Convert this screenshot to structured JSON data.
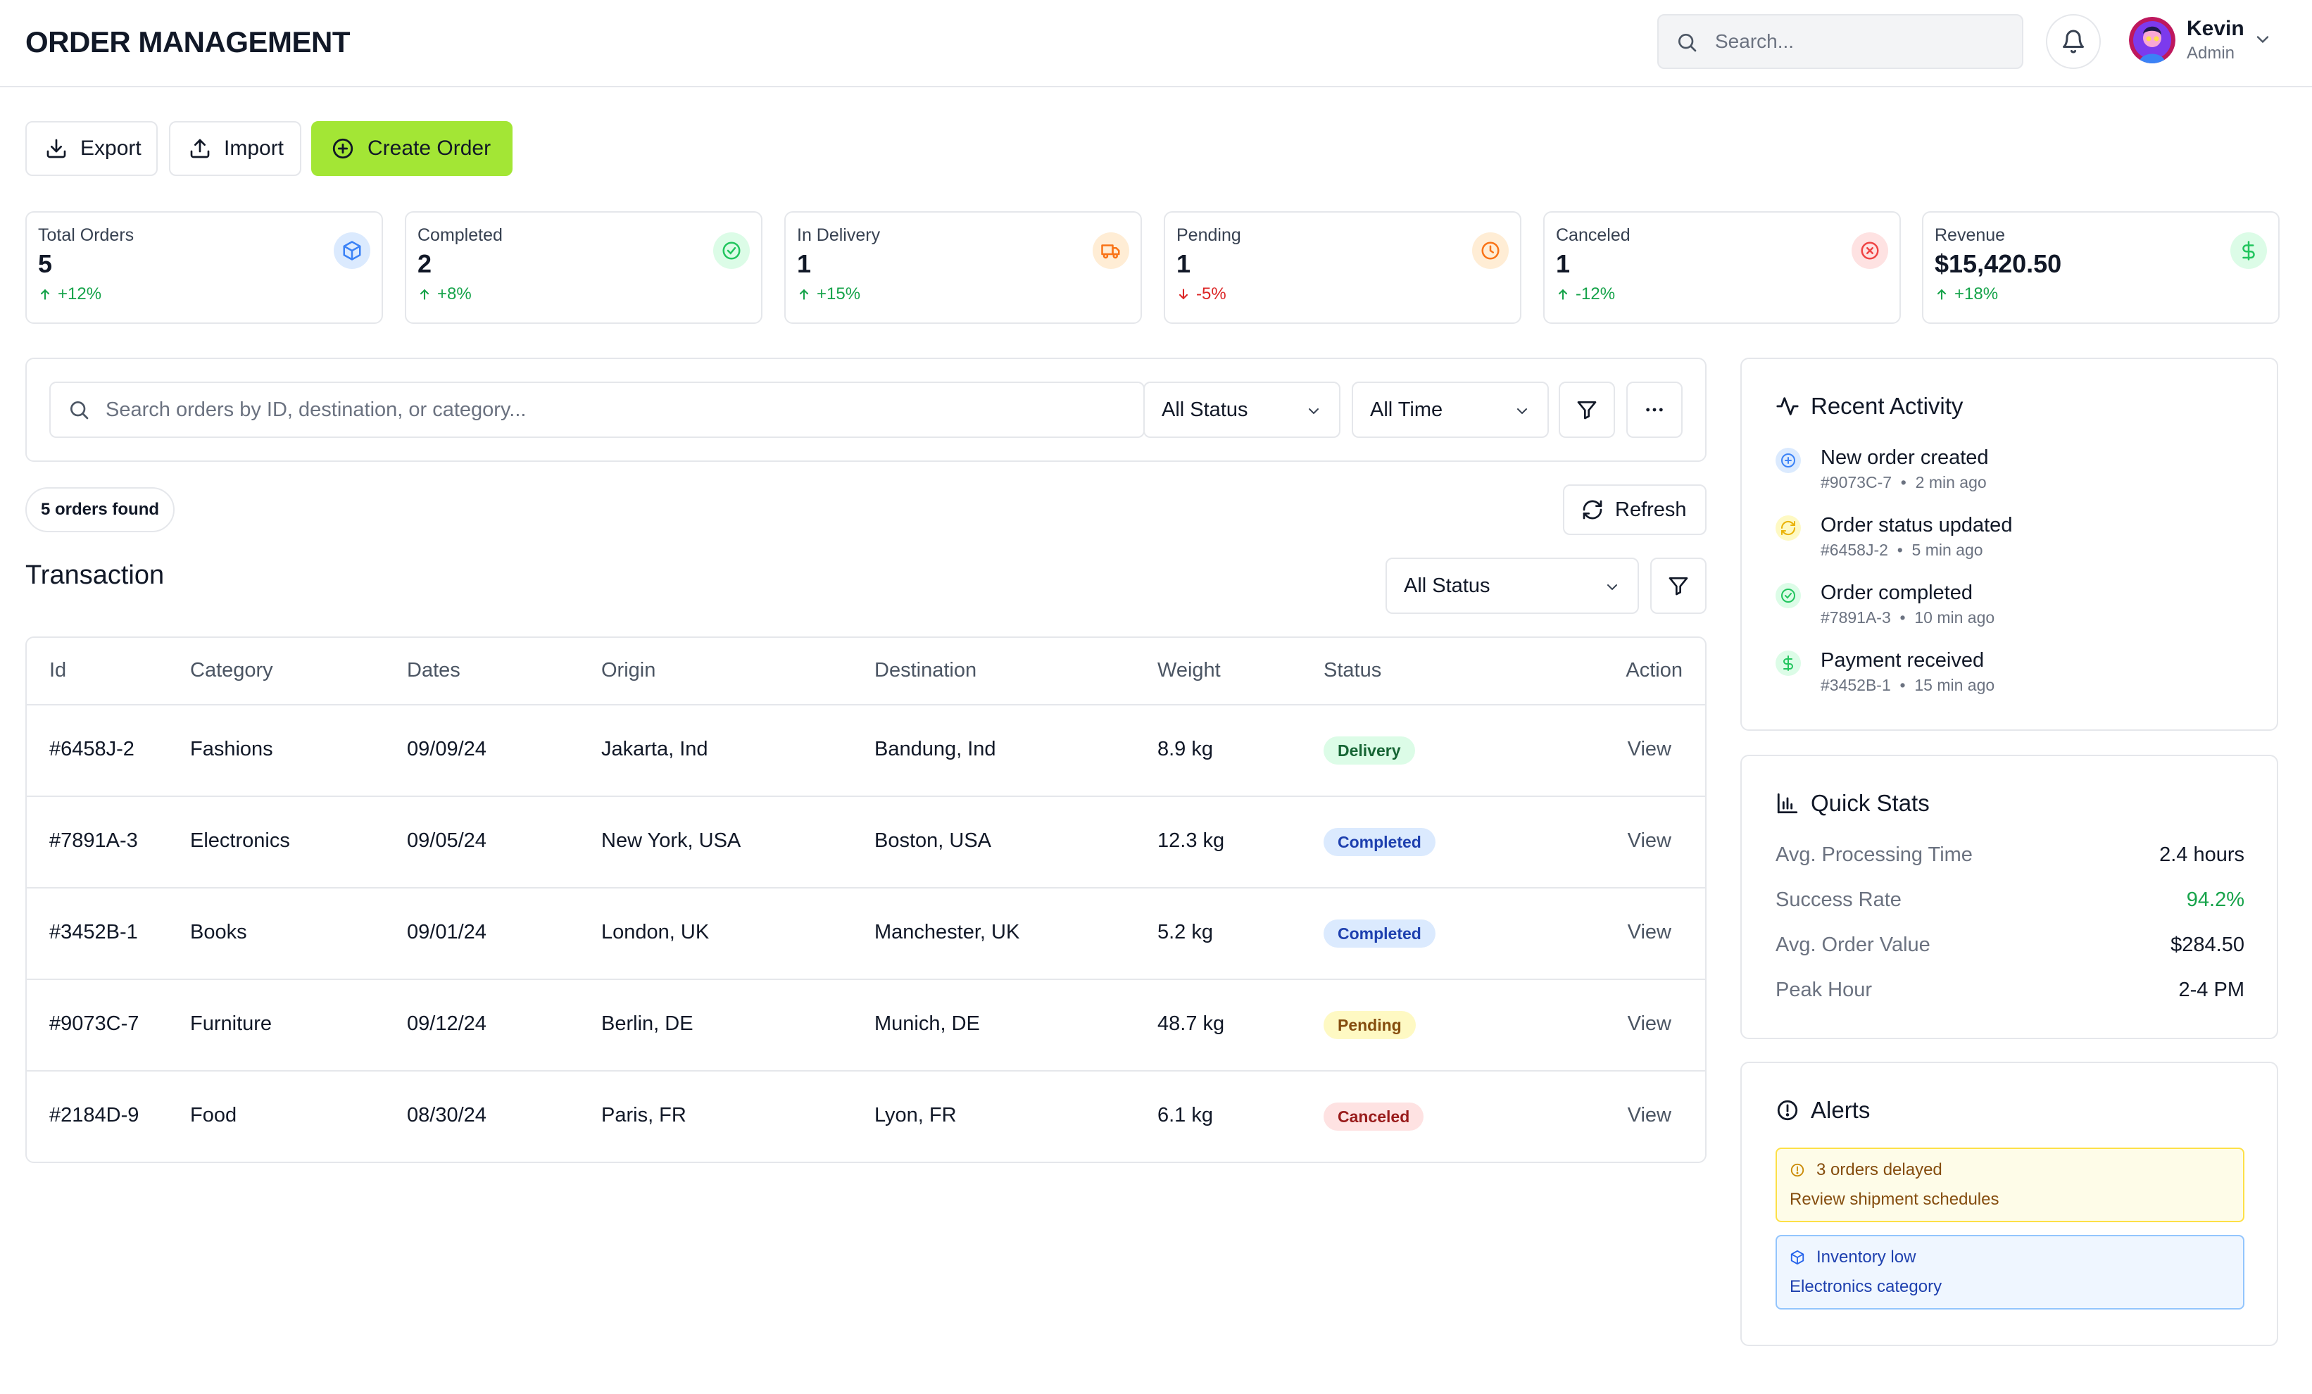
{
  "header": {
    "title": "ORDER MANAGEMENT",
    "search_placeholder": "Search...",
    "user": {
      "name": "Kevin",
      "role": "Admin"
    }
  },
  "toolbar": {
    "export_label": "Export",
    "import_label": "Import",
    "create_label": "Create Order"
  },
  "kpis": [
    {
      "label": "Total Orders",
      "value": "5",
      "change": "+12%",
      "direction": "up",
      "icon": "box-icon",
      "color": "#3b82f6"
    },
    {
      "label": "Completed",
      "value": "2",
      "change": "+8%",
      "direction": "up",
      "icon": "check-circle-icon",
      "color": "#22c55e"
    },
    {
      "label": "In Delivery",
      "value": "1",
      "change": "+15%",
      "direction": "up",
      "icon": "truck-icon",
      "color": "#f97316"
    },
    {
      "label": "Pending",
      "value": "1",
      "change": "-5%",
      "direction": "down",
      "icon": "clock-icon",
      "color": "#f97316"
    },
    {
      "label": "Canceled",
      "value": "1",
      "change": "-12%",
      "direction": "up",
      "icon": "x-circle-icon",
      "color": "#ef4444"
    },
    {
      "label": "Revenue",
      "value": "$15,420.50",
      "change": "+18%",
      "direction": "up",
      "icon": "dollar-icon",
      "color": "#22c55e"
    }
  ],
  "filters": {
    "search_placeholder": "Search orders by ID, destination, or category...",
    "status_value": "All Status",
    "time_value": "All Time"
  },
  "results": {
    "found_label": "5 orders found",
    "refresh_label": "Refresh"
  },
  "transaction": {
    "title": "Transaction",
    "status_value": "All Status",
    "columns": [
      "Id",
      "Category",
      "Dates",
      "Origin",
      "Destination",
      "Weight",
      "Status",
      "Action"
    ],
    "rows": [
      {
        "id": "#6458J-2",
        "category": "Fashions",
        "date": "09/09/24",
        "origin": "Jakarta, Ind",
        "destination": "Bandung, Ind",
        "weight": "8.9 kg",
        "status": "Delivery",
        "action": "View"
      },
      {
        "id": "#7891A-3",
        "category": "Electronics",
        "date": "09/05/24",
        "origin": "New York, USA",
        "destination": "Boston, USA",
        "weight": "12.3 kg",
        "status": "Completed",
        "action": "View"
      },
      {
        "id": "#3452B-1",
        "category": "Books",
        "date": "09/01/24",
        "origin": "London, UK",
        "destination": "Manchester, UK",
        "weight": "5.2 kg",
        "status": "Completed",
        "action": "View"
      },
      {
        "id": "#9073C-7",
        "category": "Furniture",
        "date": "09/12/24",
        "origin": "Berlin, DE",
        "destination": "Munich, DE",
        "weight": "48.7 kg",
        "status": "Pending",
        "action": "View"
      },
      {
        "id": "#2184D-9",
        "category": "Food",
        "date": "08/30/24",
        "origin": "Paris, FR",
        "destination": "Lyon, FR",
        "weight": "6.1 kg",
        "status": "Canceled",
        "action": "View"
      }
    ]
  },
  "recent_activity": {
    "title": "Recent Activity",
    "items": [
      {
        "title": "New order created",
        "ref": "#9073C-7",
        "time": "2 min ago",
        "icon": "plus-circle-icon",
        "color": "#3b82f6"
      },
      {
        "title": "Order status updated",
        "ref": "#6458J-2",
        "time": "5 min ago",
        "icon": "refresh-icon",
        "color": "#eab308"
      },
      {
        "title": "Order completed",
        "ref": "#7891A-3",
        "time": "10 min ago",
        "icon": "check-circle-icon",
        "color": "#22c55e"
      },
      {
        "title": "Payment received",
        "ref": "#3452B-1",
        "time": "15 min ago",
        "icon": "dollar-icon",
        "color": "#22c55e"
      }
    ]
  },
  "quick_stats": {
    "title": "Quick Stats",
    "items": [
      {
        "label": "Avg. Processing Time",
        "value": "2.4 hours"
      },
      {
        "label": "Success Rate",
        "value": "94.2%"
      },
      {
        "label": "Avg. Order Value",
        "value": "$284.50"
      },
      {
        "label": "Peak Hour",
        "value": "2-4 PM"
      }
    ]
  },
  "alerts": {
    "title": "Alerts",
    "items": [
      {
        "title": "3 orders delayed",
        "subtitle": "Review shipment schedules",
        "icon": "alert-circle-icon"
      },
      {
        "title": "Inventory low",
        "subtitle": "Electronics category",
        "icon": "box-icon"
      }
    ]
  }
}
